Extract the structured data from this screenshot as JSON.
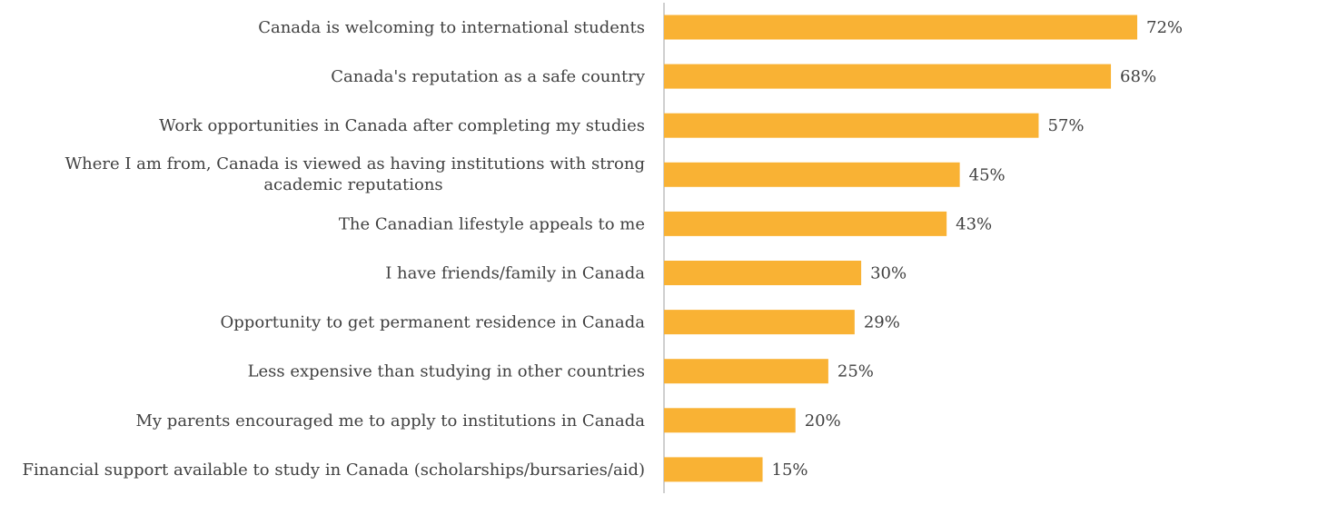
{
  "chart_data": {
    "type": "bar",
    "orientation": "horizontal",
    "title": "",
    "xlabel": "",
    "ylabel": "",
    "bar_color": "#F9B234",
    "axis_color": "#BFBFBF",
    "grid": false,
    "legend": "none",
    "xlim": [
      0,
      80
    ],
    "categories": [
      "Canada is welcoming to international students",
      "Canada's reputation as a safe country",
      "Work opportunities in Canada after completing my studies",
      "Where I am from, Canada is viewed as having institutions with strong academic reputations",
      "The Canadian lifestyle appeals to me",
      "I have friends/family in Canada",
      "Opportunity to get permanent residence in Canada",
      "Less expensive than studying in other countries",
      "My parents encouraged me to apply to institutions in Canada",
      "Financial support available to study in Canada (scholarships/bursaries/aid)"
    ],
    "category_lines": [
      [
        "Canada is welcoming to international students"
      ],
      [
        "Canada's reputation as a safe country"
      ],
      [
        "Work opportunities in Canada after completing my studies"
      ],
      [
        "Where I am from, Canada is viewed as having institutions with strong",
        "academic reputations"
      ],
      [
        "The Canadian lifestyle appeals to me"
      ],
      [
        "I have friends/family in Canada"
      ],
      [
        "Opportunity to get permanent residence in Canada"
      ],
      [
        "Less expensive than studying in other countries"
      ],
      [
        "My parents encouraged me to apply to institutions in Canada"
      ],
      [
        "Financial support available to study in Canada (scholarships/bursaries/aid)"
      ]
    ],
    "values": [
      72,
      68,
      57,
      45,
      43,
      30,
      29,
      25,
      20,
      15
    ],
    "value_labels": [
      "72%",
      "68%",
      "57%",
      "45%",
      "43%",
      "30%",
      "29%",
      "25%",
      "20%",
      "15%"
    ]
  }
}
